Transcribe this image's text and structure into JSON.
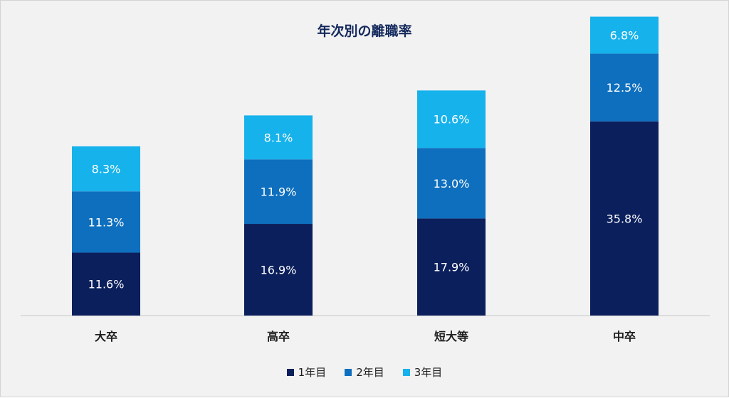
{
  "chart_data": {
    "type": "bar",
    "stacked": true,
    "title": "年次別の離職率",
    "categories": [
      "大卒",
      "高卒",
      "短大等",
      "中卒"
    ],
    "series": [
      {
        "name": "1年目",
        "values": [
          11.6,
          16.9,
          17.9,
          35.8
        ],
        "labels": [
          "11.6%",
          "16.9%",
          "17.9%",
          "35.8%"
        ],
        "color": "#0b1f5c"
      },
      {
        "name": "2年目",
        "values": [
          11.3,
          11.9,
          13.0,
          12.5
        ],
        "labels": [
          "11.3%",
          "11.9%",
          "13.0%",
          "12.5%"
        ],
        "color": "#0e6fbe"
      },
      {
        "name": "3年目",
        "values": [
          8.3,
          8.1,
          10.6,
          6.8
        ],
        "labels": [
          "8.3%",
          "8.1%",
          "10.6%",
          "6.8%"
        ],
        "color": "#16b2ec"
      }
    ],
    "xlabel": "",
    "ylabel": "",
    "ylim": [
      0,
      57
    ],
    "grid": false,
    "legend_position": "bottom"
  }
}
